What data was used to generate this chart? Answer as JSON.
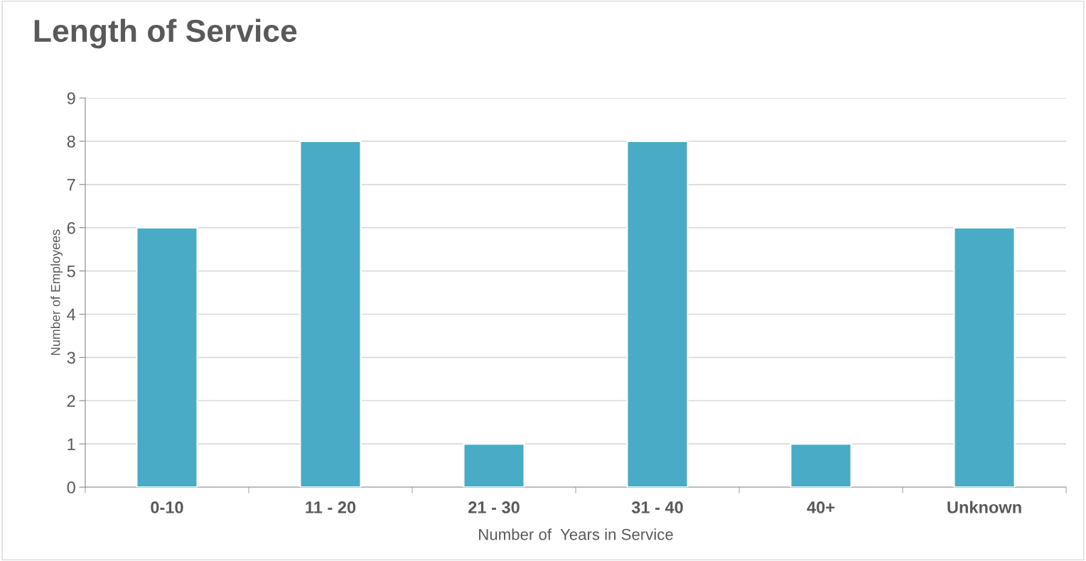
{
  "chart_data": {
    "type": "bar",
    "title": "Length of Service",
    "xlabel": "Number of  Years in Service",
    "ylabel": "Number of Employees",
    "categories": [
      "0-10",
      "11 - 20",
      "21 - 30",
      "31 - 40",
      "40+",
      "Unknown"
    ],
    "values": [
      6,
      8,
      1,
      8,
      1,
      6
    ],
    "color": "#4aabc6",
    "ylim": [
      0,
      9
    ],
    "yticks": [
      0,
      1,
      2,
      3,
      4,
      5,
      6,
      7,
      8,
      9
    ],
    "grid": "y",
    "legend": false
  }
}
